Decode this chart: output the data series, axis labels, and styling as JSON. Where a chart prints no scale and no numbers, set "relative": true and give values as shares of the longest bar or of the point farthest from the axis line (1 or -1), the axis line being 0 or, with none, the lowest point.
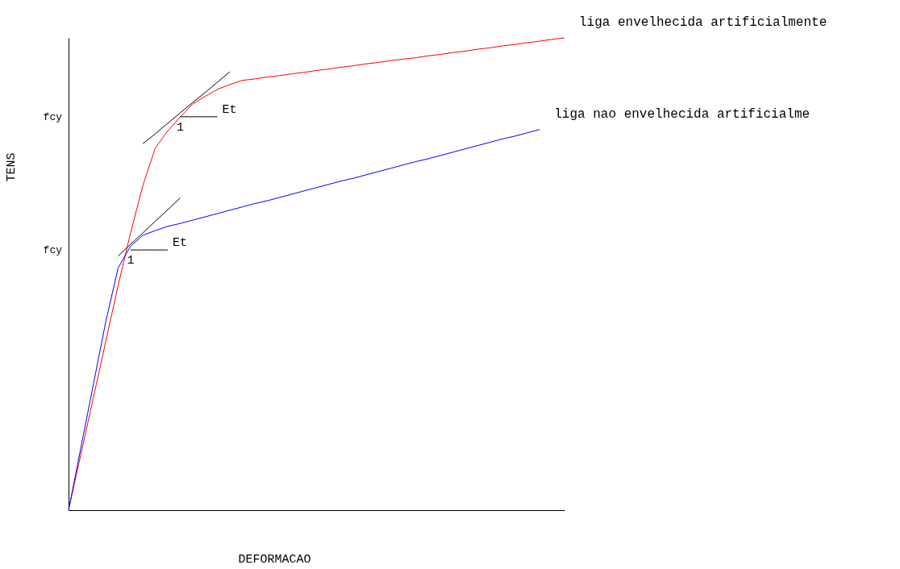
{
  "chart_data": {
    "type": "line",
    "relative": true,
    "xlabel": "DEFORMACAO",
    "ylabel": "TENS",
    "legend": false,
    "grid": false,
    "categories": [
      null,
      null,
      null,
      null,
      null,
      null,
      null,
      null,
      null,
      null,
      null,
      null,
      null,
      null,
      null,
      null,
      null,
      null,
      null,
      null,
      null,
      null,
      null,
      null,
      null,
      null,
      null,
      null,
      null,
      null,
      null,
      null,
      null,
      null,
      null,
      null,
      null,
      null,
      null,
      null,
      null
    ],
    "series": [
      {
        "name": "liga envelhecida artificialmente",
        "color": "#ff0000",
        "values": [
          0,
          0.119,
          0.238,
          0.357,
          0.476,
          0.587,
          0.688,
          0.767,
          0.803,
          0.832,
          0.86,
          0.876,
          0.891,
          0.901,
          0.91,
          0.913,
          0.917,
          0.92,
          0.924,
          0.927,
          0.931,
          0.934,
          0.938,
          0.941,
          0.945,
          0.948,
          0.952,
          0.955,
          0.958,
          0.962,
          0.965,
          0.969,
          0.972,
          0.976,
          0.979,
          0.983,
          0.986,
          0.99,
          0.993,
          0.997,
          1.0
        ]
      },
      {
        "name": "liga nao envelhecida artificialme",
        "color": "#0000ff",
        "values": [
          0,
          0.133,
          0.266,
          0.399,
          0.513,
          0.559,
          0.582,
          0.592,
          0.601,
          0.607,
          0.614,
          0.621,
          0.628,
          0.635,
          0.642,
          0.649,
          0.655,
          0.662,
          0.669,
          0.676,
          0.683,
          0.69,
          0.697,
          0.703,
          0.71,
          0.717,
          0.724,
          0.731,
          0.738,
          0.744,
          0.751,
          0.758,
          0.765,
          0.772,
          0.779,
          0.786,
          0.792,
          0.799,
          0.806,
          null,
          null
        ]
      },
      {
        "color": "#000000",
        "values": [
          null,
          null,
          null,
          null,
          null,
          null,
          0.776,
          0.797,
          0.819,
          0.841,
          0.863,
          0.884,
          0.906,
          0.928,
          null,
          null,
          null,
          null,
          null,
          null,
          null,
          null,
          null,
          null,
          null,
          null,
          null,
          null,
          null,
          null,
          null,
          null,
          null,
          null,
          null,
          null,
          null,
          null,
          null,
          null,
          null
        ]
      },
      {
        "color": "#000000",
        "values": [
          null,
          null,
          null,
          null,
          null,
          null,
          null,
          null,
          null,
          0.833,
          0.833,
          0.833,
          0.833,
          null,
          null,
          null,
          null,
          null,
          null,
          null,
          null,
          null,
          null,
          null,
          null,
          null,
          null,
          null,
          null,
          null,
          null,
          null,
          null,
          null,
          null,
          null,
          null,
          null,
          null,
          null,
          null
        ]
      },
      {
        "color": "#000000",
        "values": [
          null,
          null,
          null,
          null,
          0.538,
          0.563,
          0.587,
          0.612,
          0.636,
          0.661,
          null,
          null,
          null,
          null,
          null,
          null,
          null,
          null,
          null,
          null,
          null,
          null,
          null,
          null,
          null,
          null,
          null,
          null,
          null,
          null,
          null,
          null,
          null,
          null,
          null,
          null,
          null,
          null,
          null,
          null,
          null
        ]
      },
      {
        "color": "#000000",
        "values": [
          null,
          null,
          null,
          null,
          null,
          0.551,
          0.551,
          0.551,
          0.551,
          null,
          null,
          null,
          null,
          null,
          null,
          null,
          null,
          null,
          null,
          null,
          null,
          null,
          null,
          null,
          null,
          null,
          null,
          null,
          null,
          null,
          null,
          null,
          null,
          null,
          null,
          null,
          null,
          null,
          null,
          null,
          null
        ]
      }
    ],
    "annotations": [
      "Et",
      "1",
      "Et",
      "1",
      "fcy",
      "fcy"
    ]
  }
}
